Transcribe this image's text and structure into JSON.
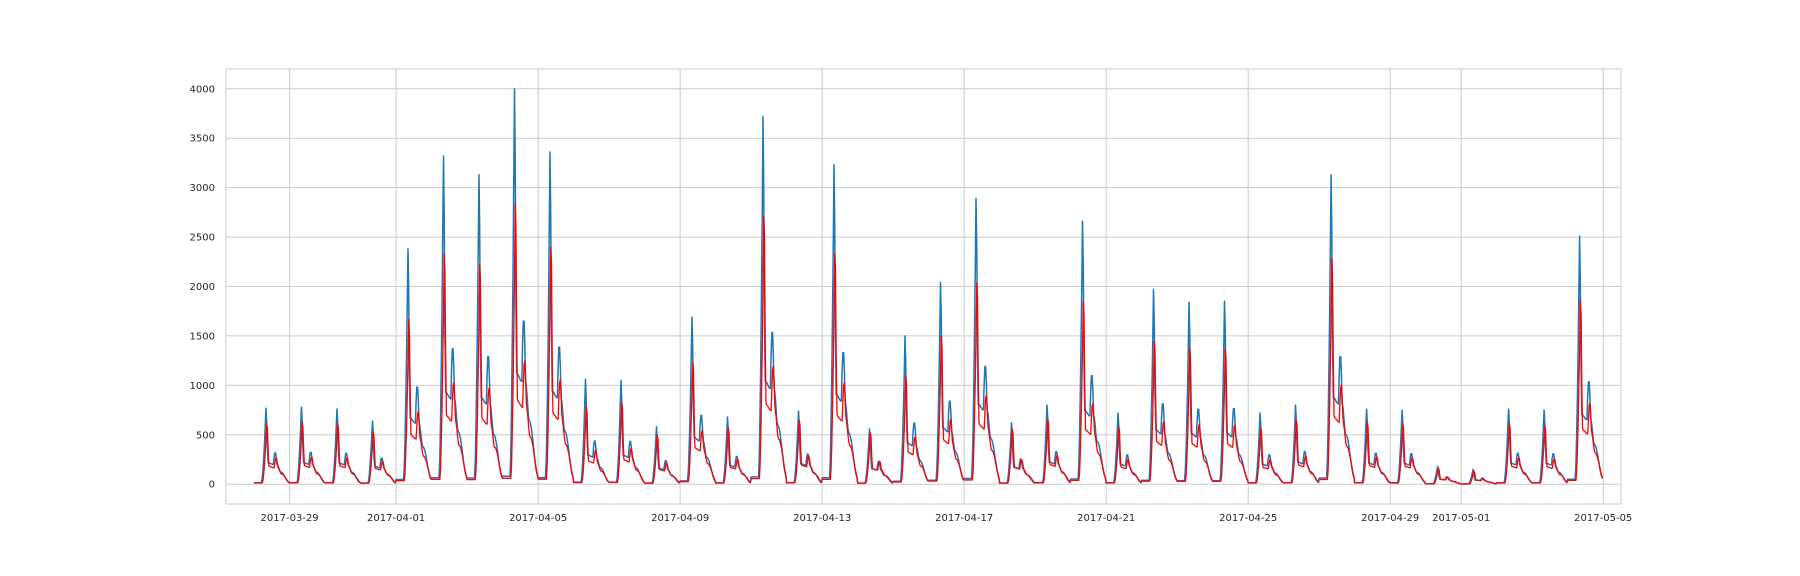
{
  "chart_data": {
    "type": "line",
    "title": "",
    "xlabel": "",
    "ylabel": "",
    "xlim": [
      "2017-03-27T05:00",
      "2017-05-05T12:00"
    ],
    "ylim": [
      -200,
      4200
    ],
    "grid": true,
    "legend": "none",
    "x_ticks": [
      "2017-03-29",
      "2017-04-01",
      "2017-04-05",
      "2017-04-09",
      "2017-04-13",
      "2017-04-17",
      "2017-04-21",
      "2017-04-25",
      "2017-04-29",
      "2017-05-01",
      "2017-05-05"
    ],
    "y_ticks": [
      0,
      500,
      1000,
      1500,
      2000,
      2500,
      3000,
      3500,
      4000
    ],
    "daily_peaks": [
      {
        "date": "2017-03-28",
        "peak": 770,
        "predicted": 640
      },
      {
        "date": "2017-03-29",
        "peak": 780,
        "predicted": 660
      },
      {
        "date": "2017-03-30",
        "peak": 760,
        "predicted": 650
      },
      {
        "date": "2017-03-31",
        "peak": 640,
        "predicted": 560
      },
      {
        "date": "2017-04-01",
        "peak": 2380,
        "predicted": 1760
      },
      {
        "date": "2017-04-02",
        "peak": 3320,
        "predicted": 2460
      },
      {
        "date": "2017-04-03",
        "peak": 3130,
        "predicted": 2340
      },
      {
        "date": "2017-04-04",
        "peak": 4000,
        "predicted": 2990
      },
      {
        "date": "2017-04-05",
        "peak": 3360,
        "predicted": 2530
      },
      {
        "date": "2017-04-06",
        "peak": 1060,
        "predicted": 830
      },
      {
        "date": "2017-04-07",
        "peak": 1050,
        "predicted": 870
      },
      {
        "date": "2017-04-08",
        "peak": 580,
        "predicted": 520
      },
      {
        "date": "2017-04-09",
        "peak": 1690,
        "predicted": 1300
      },
      {
        "date": "2017-04-10",
        "peak": 680,
        "predicted": 600
      },
      {
        "date": "2017-04-11",
        "peak": 3720,
        "predicted": 2860
      },
      {
        "date": "2017-04-12",
        "peak": 740,
        "predicted": 680
      },
      {
        "date": "2017-04-13",
        "peak": 3230,
        "predicted": 2460
      },
      {
        "date": "2017-04-14",
        "peak": 560,
        "predicted": 550
      },
      {
        "date": "2017-04-15",
        "peak": 1500,
        "predicted": 1150
      },
      {
        "date": "2017-04-16",
        "peak": 2040,
        "predicted": 1580
      },
      {
        "date": "2017-04-17",
        "peak": 2890,
        "predicted": 2150
      },
      {
        "date": "2017-04-18",
        "peak": 620,
        "predicted": 590
      },
      {
        "date": "2017-04-19",
        "peak": 800,
        "predicted": 700
      },
      {
        "date": "2017-04-20",
        "peak": 2660,
        "predicted": 1950
      },
      {
        "date": "2017-04-21",
        "peak": 720,
        "predicted": 610
      },
      {
        "date": "2017-04-22",
        "peak": 1970,
        "predicted": 1520
      },
      {
        "date": "2017-04-23",
        "peak": 1840,
        "predicted": 1450
      },
      {
        "date": "2017-04-24",
        "peak": 1850,
        "predicted": 1440
      },
      {
        "date": "2017-04-25",
        "peak": 720,
        "predicted": 600
      },
      {
        "date": "2017-04-26",
        "peak": 800,
        "predicted": 680
      },
      {
        "date": "2017-04-27",
        "peak": 3130,
        "predicted": 2410
      },
      {
        "date": "2017-04-28",
        "peak": 760,
        "predicted": 660
      },
      {
        "date": "2017-04-29",
        "peak": 750,
        "predicted": 640
      },
      {
        "date": "2017-04-30",
        "peak": 180,
        "predicted": 170
      },
      {
        "date": "2017-05-01",
        "peak": 150,
        "predicted": 140
      },
      {
        "date": "2017-05-02",
        "peak": 760,
        "predicted": 640
      },
      {
        "date": "2017-05-03",
        "peak": 750,
        "predicted": 620
      },
      {
        "date": "2017-05-04",
        "peak": 2510,
        "predicted": 1960
      }
    ],
    "series": [
      {
        "color": "#1f77b4",
        "values_key": "peak"
      },
      {
        "color": "#ff0000",
        "values_key": "predicted"
      }
    ]
  }
}
